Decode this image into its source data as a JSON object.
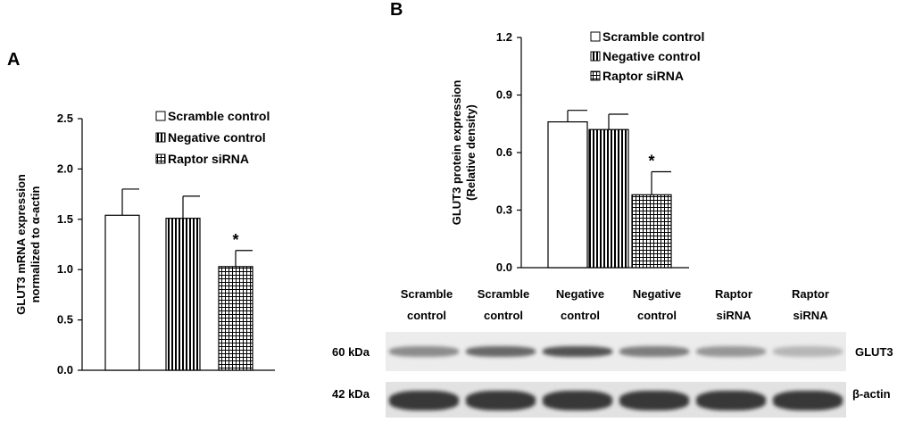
{
  "panels": {
    "a_label": "A",
    "b_label": "B"
  },
  "chart_data": [
    {
      "type": "bar",
      "panel": "A",
      "categories": [
        "Scramble control",
        "Negative control",
        "Raptor siRNA"
      ],
      "values": [
        1.54,
        1.51,
        1.03
      ],
      "errors": [
        0.26,
        0.22,
        0.16
      ],
      "significance": [
        "",
        "",
        "*"
      ],
      "ylabel_line1": "GLUT3 mRNA expression",
      "ylabel_line2": "normalized to α-actin",
      "ylim": [
        0,
        2.5
      ],
      "yticks": [
        "0.0",
        "0.5",
        "1.0",
        "1.5",
        "2.0",
        "2.5"
      ],
      "legend": [
        "Scramble control",
        "Negative control",
        "Raptor siRNA"
      ],
      "patterns": [
        "open",
        "vertical-stripes",
        "grid"
      ]
    },
    {
      "type": "bar",
      "panel": "B",
      "categories": [
        "Scramble control",
        "Negative control",
        "Raptor siRNA"
      ],
      "values": [
        0.76,
        0.72,
        0.38
      ],
      "errors": [
        0.06,
        0.08,
        0.12
      ],
      "significance": [
        "",
        "",
        "*"
      ],
      "ylabel_line1": "GLUT3 protein expression",
      "ylabel_line2": "(Relative density)",
      "ylim": [
        0,
        1.2
      ],
      "yticks": [
        "0.0",
        "0.3",
        "0.6",
        "0.9",
        "1.2"
      ],
      "legend": [
        "Scramble control",
        "Negative control",
        "Raptor siRNA"
      ],
      "patterns": [
        "open",
        "vertical-stripes",
        "grid"
      ]
    }
  ],
  "blot": {
    "lanes": [
      {
        "line1": "Scramble",
        "line2": "control"
      },
      {
        "line1": "Scramble",
        "line2": "control"
      },
      {
        "line1": "Negative",
        "line2": "control"
      },
      {
        "line1": "Negative",
        "line2": "control"
      },
      {
        "line1": "Raptor",
        "line2": "siRNA"
      },
      {
        "line1": "Raptor",
        "line2": "siRNA"
      }
    ],
    "rows": [
      {
        "kda": "60 kDa",
        "label": "GLUT3",
        "intensities": [
          0.55,
          0.72,
          0.82,
          0.62,
          0.5,
          0.35
        ]
      },
      {
        "kda": "42 kDa",
        "label": "β-actin",
        "intensities": [
          0.95,
          0.95,
          0.95,
          0.95,
          0.95,
          0.95
        ]
      }
    ]
  }
}
